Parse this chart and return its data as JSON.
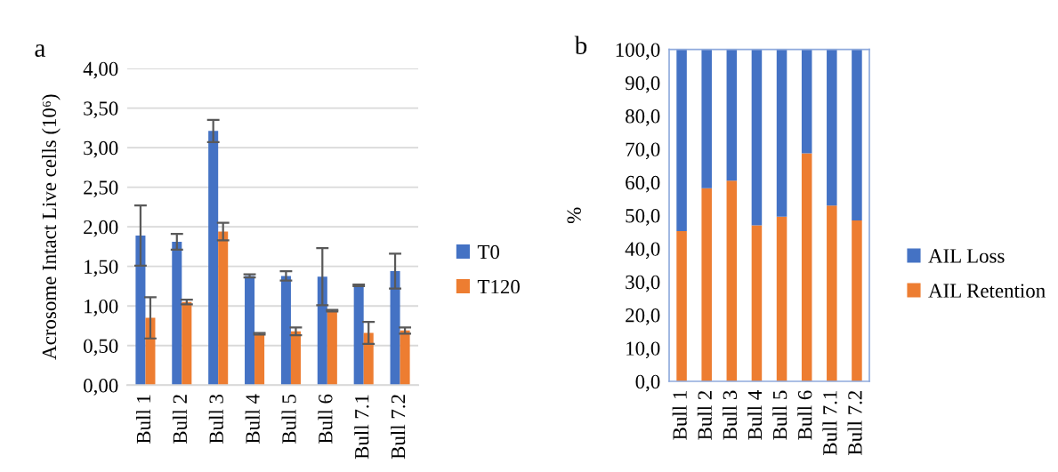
{
  "chart_data": [
    {
      "type": "bar",
      "title": "a",
      "ylabel": "Acrosome Intact Live cells (10⁶)",
      "categories": [
        "Bull 1",
        "Bull 2",
        "Bull 3",
        "Bull 4",
        "Bull 5",
        "Bull 6",
        "Bull 7.1",
        "Bull 7.2"
      ],
      "series": [
        {
          "name": "T0",
          "color": "#4472c4",
          "values": [
            1.89,
            1.81,
            3.21,
            1.38,
            1.38,
            1.37,
            1.26,
            1.44
          ],
          "errors": [
            0.38,
            0.1,
            0.14,
            0.02,
            0.06,
            0.36,
            0.01,
            0.22
          ]
        },
        {
          "name": "T120",
          "color": "#ed7d31",
          "values": [
            0.85,
            1.05,
            1.94,
            0.65,
            0.68,
            0.94,
            0.66,
            0.69
          ],
          "errors": [
            0.26,
            0.03,
            0.11,
            0.01,
            0.05,
            0.01,
            0.14,
            0.04
          ]
        }
      ],
      "ylim": [
        0,
        4
      ],
      "yticks": [
        {
          "value": 0,
          "label": "0,00"
        },
        {
          "value": 0.5,
          "label": "0,50"
        },
        {
          "value": 1,
          "label": "1,00"
        },
        {
          "value": 1.5,
          "label": "1,50"
        },
        {
          "value": 2,
          "label": "2,00"
        },
        {
          "value": 2.5,
          "label": "2,50"
        },
        {
          "value": 3,
          "label": "3,00"
        },
        {
          "value": 3.5,
          "label": "3,50"
        },
        {
          "value": 4,
          "label": "4,00"
        }
      ],
      "grid": "y",
      "legend": "right"
    },
    {
      "type": "bar",
      "title": "b",
      "ylabel": "%",
      "stacked": true,
      "categories": [
        "Bull 1",
        "Bull 2",
        "Bull 3",
        "Bull 4",
        "Bull 5",
        "Bull 6",
        "Bull 7.1",
        "Bull 7.2"
      ],
      "series": [
        {
          "name": "AIL Retention",
          "color": "#ed7d31",
          "values": [
            45.3,
            58.2,
            60.5,
            47.0,
            49.6,
            68.7,
            53.0,
            48.5
          ]
        },
        {
          "name": "AIL Loss",
          "color": "#4472c4",
          "values": [
            54.7,
            41.8,
            39.5,
            53.0,
            50.4,
            31.3,
            47.0,
            51.5
          ]
        }
      ],
      "ylim": [
        0,
        100
      ],
      "yticks": [
        {
          "value": 0,
          "label": "0,0"
        },
        {
          "value": 10,
          "label": "10,0"
        },
        {
          "value": 20,
          "label": "20,0"
        },
        {
          "value": 30,
          "label": "30,0"
        },
        {
          "value": 40,
          "label": "40,0"
        },
        {
          "value": 50,
          "label": "50,0"
        },
        {
          "value": 60,
          "label": "60,0"
        },
        {
          "value": 70,
          "label": "70,0"
        },
        {
          "value": 80,
          "label": "80,0"
        },
        {
          "value": 90,
          "label": "90,0"
        },
        {
          "value": 100,
          "label": "100,0"
        }
      ],
      "grid": false,
      "legend": "right"
    }
  ]
}
